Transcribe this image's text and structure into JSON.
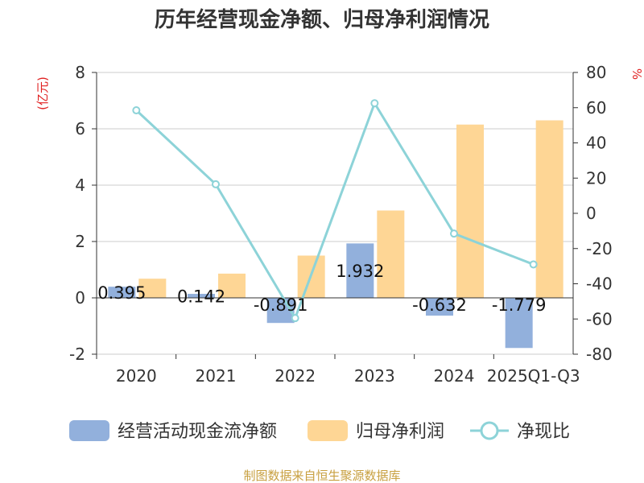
{
  "title": "历年经营现金净额、归母净利润情况",
  "source": "制图数据来自恒生聚源数据库",
  "colors": {
    "cash_flow": "#92b0dc",
    "net_profit": "#fed695",
    "ratio": "#8dd3d8",
    "unit": "#e02020",
    "source": "#c8a040",
    "grid": "#cccccc",
    "axis": "#333333"
  },
  "chart_data": {
    "type": "bar",
    "title": "历年经营现金净额、归母净利润情况",
    "categories": [
      "2020",
      "2021",
      "2022",
      "2023",
      "2024",
      "2025Q1-Q3"
    ],
    "left_axis": {
      "unit": "(亿元)",
      "ylim": [
        -2,
        8
      ],
      "ticks": [
        8,
        6,
        4,
        2,
        0,
        -2
      ]
    },
    "right_axis": {
      "unit": "%",
      "ylim": [
        -80,
        80
      ],
      "ticks": [
        80,
        60,
        40,
        20,
        0,
        -20,
        -40,
        -60,
        -80
      ]
    },
    "grid": true,
    "legend_position": "bottom",
    "series": [
      {
        "name": "经营活动现金流净额",
        "type": "bar",
        "axis": "left",
        "values": [
          0.395,
          0.142,
          -0.891,
          1.932,
          -0.632,
          -1.779
        ],
        "labels": [
          "0.395",
          "0.142",
          "-0.891",
          "1.932",
          "-0.632",
          "-1.779"
        ]
      },
      {
        "name": "归母净利润",
        "type": "bar",
        "axis": "left",
        "values": [
          0.68,
          0.86,
          1.5,
          3.1,
          6.15,
          6.3
        ]
      },
      {
        "name": "净现比",
        "type": "line",
        "axis": "right",
        "values": [
          58.5,
          16.5,
          -59.5,
          62.5,
          -11.5,
          -29
        ]
      }
    ]
  }
}
